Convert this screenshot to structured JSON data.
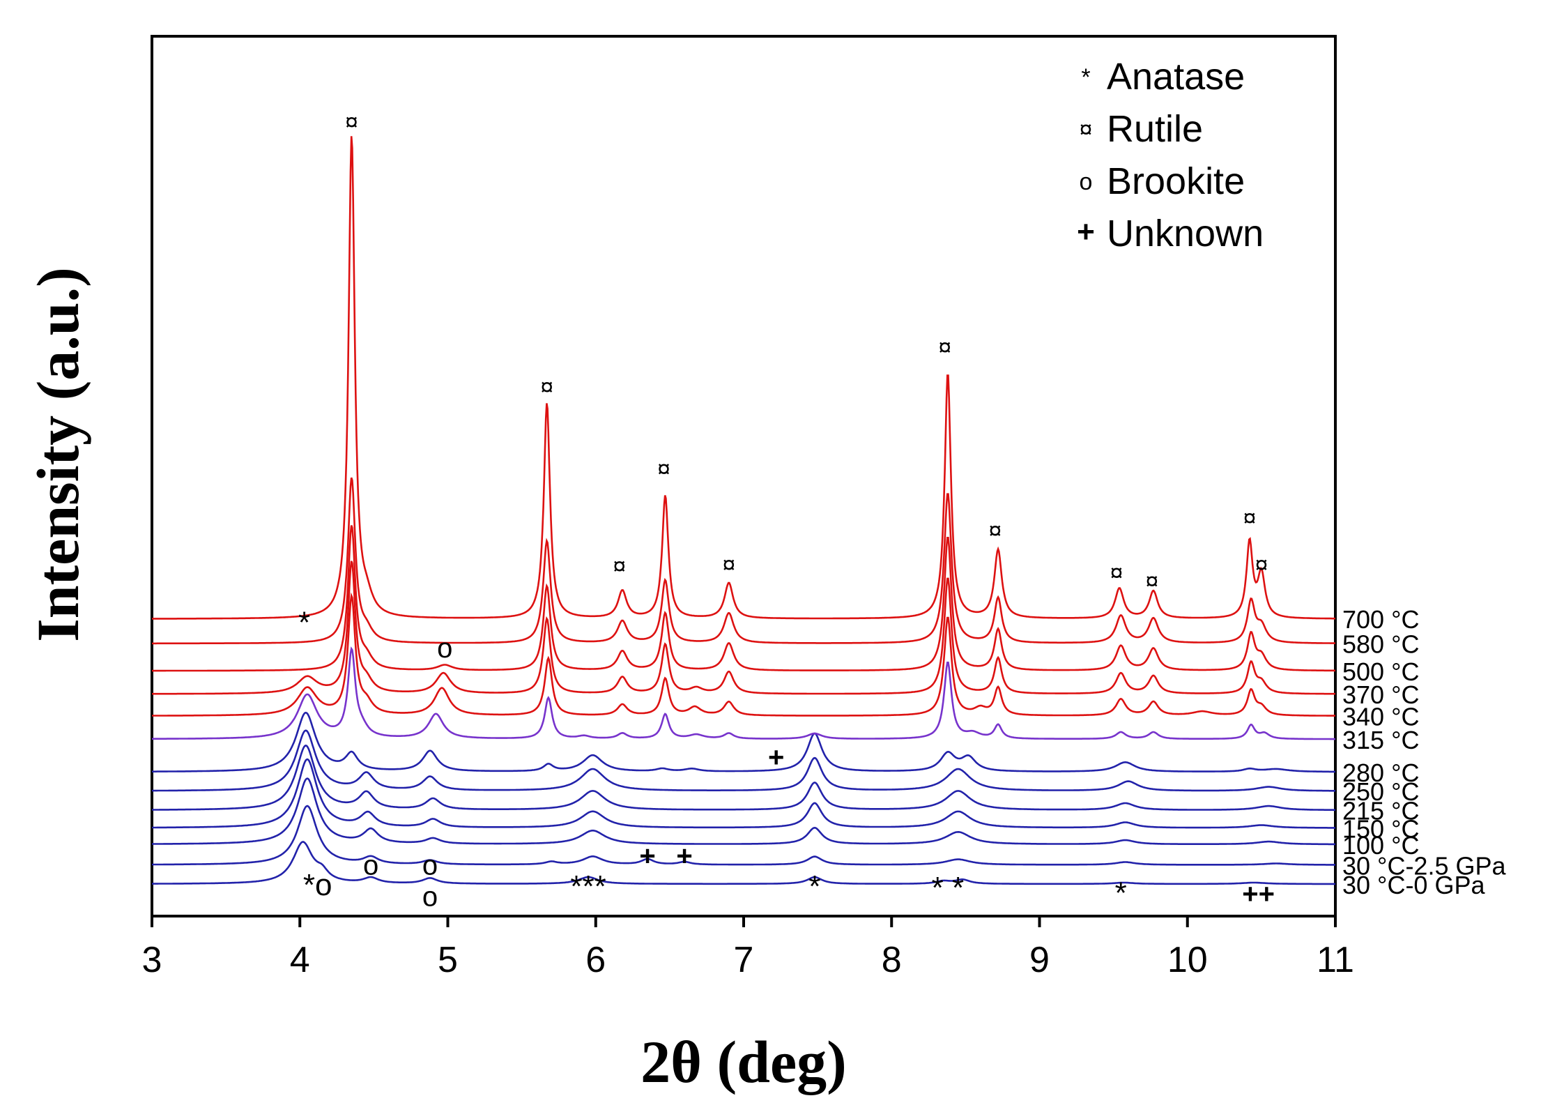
{
  "chart_data": {
    "type": "line",
    "title": "",
    "xlabel": "2θ (deg)",
    "ylabel": "Intensity (a.u.)",
    "xlim": [
      3,
      11
    ],
    "xticks": [
      3,
      4,
      5,
      6,
      7,
      8,
      9,
      10,
      11
    ],
    "xtick_labels": [
      "3",
      "4",
      "5",
      "6",
      "7",
      "8",
      "9",
      "10",
      "11"
    ],
    "grid": false,
    "legend_position": "top-right",
    "legend": [
      {
        "symbol": "*",
        "label": "Anatase"
      },
      {
        "symbol": "¤",
        "label": "Rutile"
      },
      {
        "symbol": "o",
        "label": "Brookite"
      },
      {
        "symbol": "+",
        "label": "Unknown"
      }
    ],
    "series": [
      {
        "name": "30 °C-0 GPa",
        "color": "#2222aa",
        "baseline": 0.0,
        "peaks": [
          [
            4.02,
            0.3,
            0.08
          ],
          [
            4.15,
            0.06,
            0.05
          ],
          [
            4.48,
            0.04,
            0.06
          ],
          [
            4.88,
            0.04,
            0.06
          ],
          [
            5.95,
            0.05,
            0.08
          ],
          [
            7.48,
            0.05,
            0.06
          ],
          [
            8.35,
            0.02,
            0.06
          ],
          [
            8.48,
            0.03,
            0.06
          ],
          [
            9.57,
            0.01,
            0.08
          ],
          [
            10.45,
            0.01,
            0.1
          ]
        ]
      },
      {
        "name": "30 °C-2.5 GPa",
        "color": "#2222aa",
        "baseline": 0.14,
        "peaks": [
          [
            4.05,
            0.43,
            0.08
          ],
          [
            4.48,
            0.05,
            0.06
          ],
          [
            4.88,
            0.03,
            0.06
          ],
          [
            5.7,
            0.02,
            0.05
          ],
          [
            5.98,
            0.06,
            0.08
          ],
          [
            6.35,
            0.04,
            0.05
          ],
          [
            6.6,
            0.02,
            0.05
          ],
          [
            7.48,
            0.06,
            0.06
          ],
          [
            8.45,
            0.04,
            0.1
          ],
          [
            9.58,
            0.02,
            0.08
          ],
          [
            10.6,
            0.01,
            0.1
          ]
        ]
      },
      {
        "name": "100 °C",
        "color": "#2222aa",
        "baseline": 0.29,
        "peaks": [
          [
            4.05,
            0.48,
            0.08
          ],
          [
            4.48,
            0.1,
            0.06
          ],
          [
            4.9,
            0.04,
            0.06
          ],
          [
            5.98,
            0.1,
            0.1
          ],
          [
            7.48,
            0.12,
            0.06
          ],
          [
            8.45,
            0.09,
            0.1
          ],
          [
            9.58,
            0.03,
            0.08
          ],
          [
            10.55,
            0.02,
            0.1
          ]
        ]
      },
      {
        "name": "150 °C",
        "color": "#2222aa",
        "baseline": 0.41,
        "peaks": [
          [
            4.05,
            0.5,
            0.08
          ],
          [
            4.46,
            0.1,
            0.06
          ],
          [
            4.9,
            0.06,
            0.06
          ],
          [
            5.98,
            0.12,
            0.1
          ],
          [
            7.48,
            0.18,
            0.06
          ],
          [
            8.45,
            0.12,
            0.1
          ],
          [
            9.58,
            0.04,
            0.08
          ],
          [
            10.5,
            0.02,
            0.1
          ]
        ]
      },
      {
        "name": "215 °C",
        "color": "#2222aa",
        "baseline": 0.54,
        "peaks": [
          [
            4.04,
            0.47,
            0.08
          ],
          [
            4.45,
            0.12,
            0.06
          ],
          [
            4.9,
            0.08,
            0.06
          ],
          [
            5.98,
            0.14,
            0.1
          ],
          [
            7.48,
            0.2,
            0.06
          ],
          [
            8.45,
            0.14,
            0.1
          ],
          [
            9.58,
            0.05,
            0.08
          ],
          [
            10.55,
            0.03,
            0.1
          ]
        ]
      },
      {
        "name": "250 °C",
        "color": "#2222aa",
        "baseline": 0.68,
        "peaks": [
          [
            4.04,
            0.44,
            0.08
          ],
          [
            4.45,
            0.12,
            0.06
          ],
          [
            4.88,
            0.1,
            0.06
          ],
          [
            5.98,
            0.16,
            0.1
          ],
          [
            7.48,
            0.24,
            0.06
          ],
          [
            8.45,
            0.16,
            0.1
          ],
          [
            9.6,
            0.07,
            0.08
          ],
          [
            10.55,
            0.03,
            0.1
          ]
        ]
      },
      {
        "name": "280 °C",
        "color": "#2222aa",
        "baseline": 0.82,
        "peaks": [
          [
            4.04,
            0.43,
            0.08
          ],
          [
            4.35,
            0.12,
            0.05
          ],
          [
            4.88,
            0.15,
            0.06
          ],
          [
            5.68,
            0.05,
            0.04
          ],
          [
            5.98,
            0.12,
            0.08
          ],
          [
            6.45,
            0.02,
            0.05
          ],
          [
            6.65,
            0.02,
            0.06
          ],
          [
            7.48,
            0.28,
            0.06
          ],
          [
            8.38,
            0.13,
            0.06
          ],
          [
            8.52,
            0.1,
            0.06
          ],
          [
            9.58,
            0.07,
            0.08
          ],
          [
            10.42,
            0.02,
            0.05
          ],
          [
            10.6,
            0.02,
            0.1
          ]
        ]
      },
      {
        "name": "315 °C",
        "color": "#7733cc",
        "baseline": 1.06,
        "peaks": [
          [
            4.05,
            0.32,
            0.08
          ],
          [
            4.35,
            0.62,
            0.03
          ],
          [
            4.42,
            0.06,
            0.05
          ],
          [
            4.92,
            0.18,
            0.06
          ],
          [
            5.68,
            0.3,
            0.03
          ],
          [
            5.92,
            0.02,
            0.05
          ],
          [
            6.18,
            0.04,
            0.04
          ],
          [
            6.47,
            0.18,
            0.03
          ],
          [
            6.68,
            0.03,
            0.06
          ],
          [
            6.9,
            0.04,
            0.04
          ],
          [
            7.48,
            0.04,
            0.06
          ],
          [
            8.38,
            0.56,
            0.03
          ],
          [
            8.55,
            0.04,
            0.06
          ],
          [
            8.72,
            0.1,
            0.03
          ],
          [
            9.55,
            0.05,
            0.04
          ],
          [
            9.77,
            0.05,
            0.04
          ],
          [
            10.43,
            0.1,
            0.03
          ],
          [
            10.52,
            0.04,
            0.04
          ]
        ]
      },
      {
        "name": "340 °C",
        "color": "#dd1111",
        "baseline": 1.23,
        "peaks": [
          [
            4.05,
            0.2,
            0.08
          ],
          [
            4.35,
            0.85,
            0.03
          ],
          [
            4.45,
            0.08,
            0.05
          ],
          [
            4.96,
            0.2,
            0.06
          ],
          [
            5.68,
            0.42,
            0.03
          ],
          [
            6.18,
            0.08,
            0.04
          ],
          [
            6.47,
            0.27,
            0.03
          ],
          [
            6.67,
            0.06,
            0.05
          ],
          [
            6.9,
            0.1,
            0.04
          ],
          [
            8.38,
            0.72,
            0.03
          ],
          [
            8.6,
            0.05,
            0.05
          ],
          [
            8.72,
            0.2,
            0.03
          ],
          [
            9.55,
            0.12,
            0.04
          ],
          [
            9.77,
            0.1,
            0.04
          ],
          [
            10.1,
            0.03,
            0.08
          ],
          [
            10.43,
            0.18,
            0.03
          ],
          [
            10.5,
            0.06,
            0.04
          ]
        ]
      },
      {
        "name": "370 °C",
        "color": "#dd1111",
        "baseline": 1.39,
        "peaks": [
          [
            4.05,
            0.12,
            0.08
          ],
          [
            4.35,
            0.95,
            0.03
          ],
          [
            4.45,
            0.08,
            0.05
          ],
          [
            4.97,
            0.15,
            0.06
          ],
          [
            5.67,
            0.55,
            0.03
          ],
          [
            6.18,
            0.12,
            0.04
          ],
          [
            6.47,
            0.36,
            0.03
          ],
          [
            6.68,
            0.04,
            0.05
          ],
          [
            6.9,
            0.16,
            0.04
          ],
          [
            8.38,
            0.85,
            0.03
          ],
          [
            8.72,
            0.26,
            0.03
          ],
          [
            9.55,
            0.15,
            0.04
          ],
          [
            9.77,
            0.13,
            0.04
          ],
          [
            10.43,
            0.22,
            0.03
          ],
          [
            10.5,
            0.08,
            0.04
          ]
        ]
      },
      {
        "name": "500 °C",
        "color": "#dd1111",
        "baseline": 1.56,
        "peaks": [
          [
            4.35,
            1.05,
            0.03
          ],
          [
            4.45,
            0.08,
            0.05
          ],
          [
            4.98,
            0.04,
            0.06
          ],
          [
            5.67,
            0.62,
            0.03
          ],
          [
            6.18,
            0.14,
            0.04
          ],
          [
            6.47,
            0.42,
            0.03
          ],
          [
            6.9,
            0.2,
            0.04
          ],
          [
            8.38,
            0.98,
            0.03
          ],
          [
            8.72,
            0.3,
            0.03
          ],
          [
            9.55,
            0.18,
            0.04
          ],
          [
            9.77,
            0.16,
            0.04
          ],
          [
            10.43,
            0.26,
            0.03
          ],
          [
            10.5,
            0.1,
            0.04
          ]
        ]
      },
      {
        "name": "580 °C",
        "color": "#dd1111",
        "baseline": 1.76,
        "peaks": [
          [
            4.35,
            1.2,
            0.03
          ],
          [
            4.45,
            0.08,
            0.05
          ],
          [
            5.67,
            0.75,
            0.03
          ],
          [
            6.18,
            0.16,
            0.04
          ],
          [
            6.47,
            0.46,
            0.03
          ],
          [
            6.9,
            0.22,
            0.04
          ],
          [
            8.38,
            1.1,
            0.03
          ],
          [
            8.72,
            0.33,
            0.03
          ],
          [
            9.55,
            0.2,
            0.04
          ],
          [
            9.77,
            0.18,
            0.04
          ],
          [
            10.43,
            0.3,
            0.03
          ],
          [
            10.5,
            0.12,
            0.04
          ]
        ]
      },
      {
        "name": "700 °C",
        "color": "#dd1111",
        "baseline": 1.94,
        "peaks": [
          [
            4.35,
            3.52,
            0.025
          ],
          [
            4.45,
            0.12,
            0.05
          ],
          [
            5.67,
            1.58,
            0.025
          ],
          [
            6.18,
            0.2,
            0.035
          ],
          [
            6.47,
            0.9,
            0.025
          ],
          [
            6.9,
            0.26,
            0.035
          ],
          [
            8.38,
            1.8,
            0.025
          ],
          [
            8.72,
            0.5,
            0.03
          ],
          [
            9.54,
            0.22,
            0.035
          ],
          [
            9.77,
            0.2,
            0.035
          ],
          [
            10.42,
            0.55,
            0.025
          ],
          [
            10.5,
            0.32,
            0.03
          ]
        ]
      }
    ],
    "annotations": [
      {
        "symbol": "¤",
        "x": 4.35,
        "y": 5.58
      },
      {
        "symbol": "¤",
        "x": 5.67,
        "y": 3.64
      },
      {
        "symbol": "¤",
        "x": 6.16,
        "y": 2.33
      },
      {
        "symbol": "¤",
        "x": 6.46,
        "y": 3.04
      },
      {
        "symbol": "¤",
        "x": 6.9,
        "y": 2.34
      },
      {
        "symbol": "¤",
        "x": 8.36,
        "y": 3.93
      },
      {
        "symbol": "¤",
        "x": 8.7,
        "y": 2.59
      },
      {
        "symbol": "¤",
        "x": 9.52,
        "y": 2.28
      },
      {
        "symbol": "¤",
        "x": 9.76,
        "y": 2.22
      },
      {
        "symbol": "¤",
        "x": 10.42,
        "y": 2.68
      },
      {
        "symbol": "¤",
        "x": 10.5,
        "y": 2.34
      },
      {
        "symbol": "*",
        "x": 4.03,
        "y": 1.9
      },
      {
        "symbol": "o",
        "x": 4.98,
        "y": 1.72
      },
      {
        "symbol": "+",
        "x": 7.22,
        "y": 0.92
      },
      {
        "symbol": "+",
        "x": 6.35,
        "y": 0.2
      },
      {
        "symbol": "+",
        "x": 6.6,
        "y": 0.2
      },
      {
        "symbol": "o",
        "x": 4.48,
        "y": 0.13
      },
      {
        "symbol": "o",
        "x": 4.88,
        "y": 0.13
      },
      {
        "symbol": "*o",
        "x": 4.12,
        "y": -0.02
      },
      {
        "symbol": "o",
        "x": 4.88,
        "y": -0.1
      },
      {
        "symbol": "***",
        "x": 5.95,
        "y": -0.03
      },
      {
        "symbol": "*",
        "x": 7.48,
        "y": -0.03
      },
      {
        "symbol": "* *",
        "x": 8.38,
        "y": -0.04
      },
      {
        "symbol": "*",
        "x": 9.55,
        "y": -0.08
      },
      {
        "symbol": "++",
        "x": 10.48,
        "y": -0.08
      }
    ]
  }
}
